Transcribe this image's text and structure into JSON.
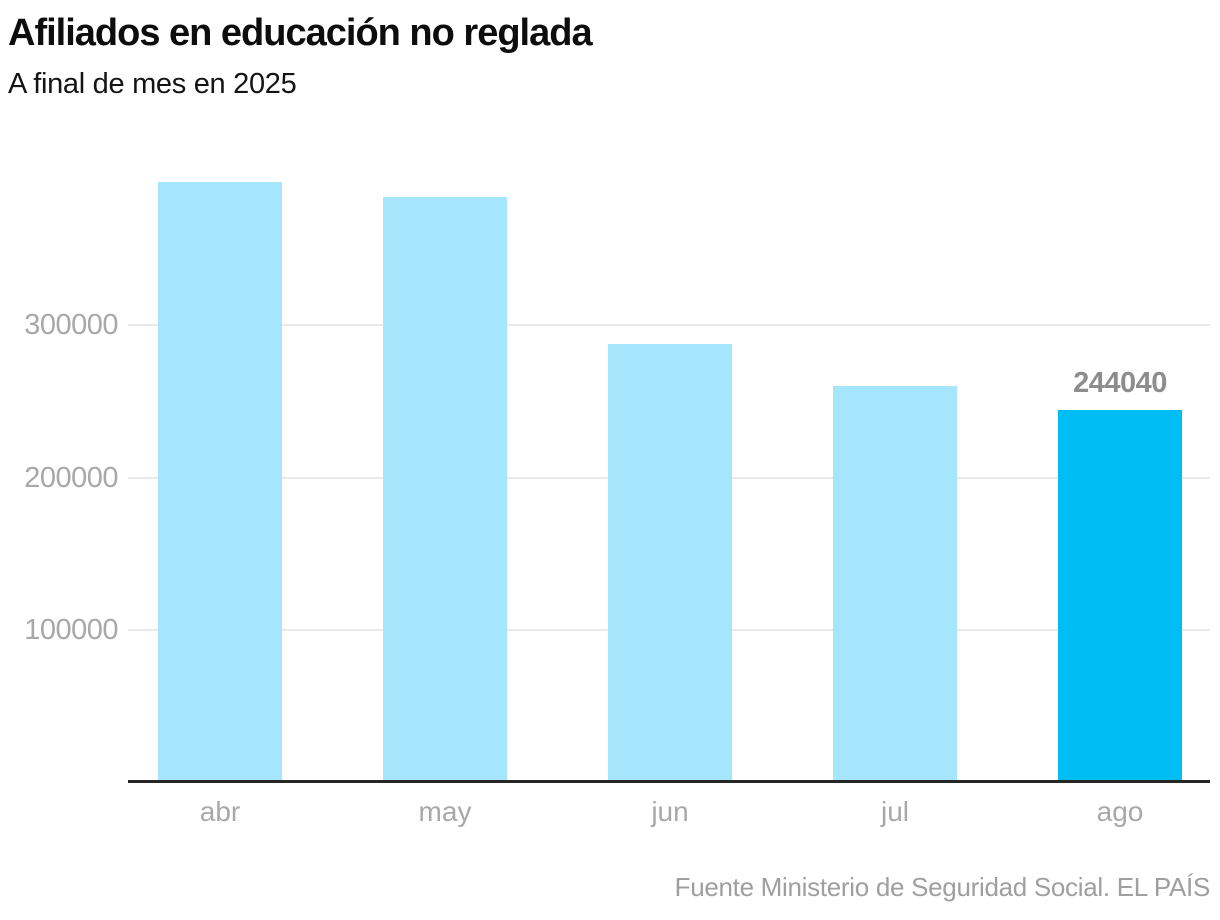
{
  "header": {
    "title": "Afiliados en educación no reglada",
    "subtitle": "A final de mes en 2025"
  },
  "footer": {
    "source": "Fuente Ministerio de Seguridad Social. EL PAÍS"
  },
  "chart_data": {
    "type": "bar",
    "title": "Afiliados en educación no reglada",
    "subtitle": "A final de mes en 2025",
    "source": "Fuente Ministerio de Seguridad Social. EL PAÍS",
    "categories": [
      "abr",
      "may",
      "jun",
      "jul",
      "ago"
    ],
    "values": [
      394000,
      384000,
      288000,
      260000,
      244040
    ],
    "highlight_index": 4,
    "value_labels": [
      {
        "index": 4,
        "text": "244040"
      }
    ],
    "yticks": [
      100000,
      200000,
      300000
    ],
    "ylim": [
      0,
      400000
    ],
    "grid": "horizontal",
    "legend": "none",
    "colors": {
      "bar": "#a5e6fd",
      "highlight": "#00bdf2",
      "gridline": "#e9e9e9",
      "axis": "#262626",
      "tick_label": "#a8a8a8",
      "value_label": "#8d8d8d"
    }
  }
}
